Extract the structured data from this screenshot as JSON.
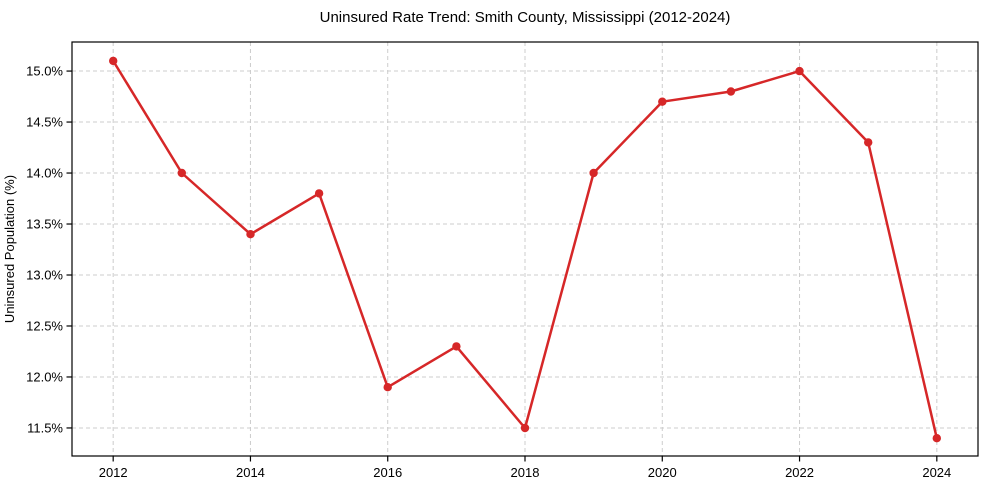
{
  "chart_data": {
    "type": "line",
    "title": "Uninsured Rate Trend: Smith County, Mississippi (2012-2024)",
    "xlabel": "",
    "ylabel": "Uninsured Population (%)",
    "x": [
      2012,
      2013,
      2014,
      2015,
      2016,
      2017,
      2018,
      2019,
      2020,
      2021,
      2022,
      2023,
      2024
    ],
    "series": [
      {
        "name": "Uninsured Rate",
        "values": [
          15.1,
          14.0,
          13.4,
          13.8,
          11.9,
          12.3,
          11.5,
          14.0,
          14.7,
          14.8,
          15.0,
          14.3,
          11.4
        ]
      }
    ],
    "xticks": [
      2012,
      2014,
      2016,
      2018,
      2020,
      2022,
      2024
    ],
    "yticks": [
      11.5,
      12.0,
      12.5,
      13.0,
      13.5,
      14.0,
      14.5,
      15.0
    ],
    "ytick_suffix": "%",
    "xlim": [
      2011.4,
      2024.6
    ],
    "ylim": [
      11.225,
      15.285
    ],
    "grid": true,
    "grid_style": "dashed",
    "legend_position": "none",
    "line_color": "#d62728",
    "grid_color": "#cccccc",
    "axis_color": "#000000",
    "marker": "circle",
    "marker_radius": 4.2,
    "line_width": 2.5
  }
}
